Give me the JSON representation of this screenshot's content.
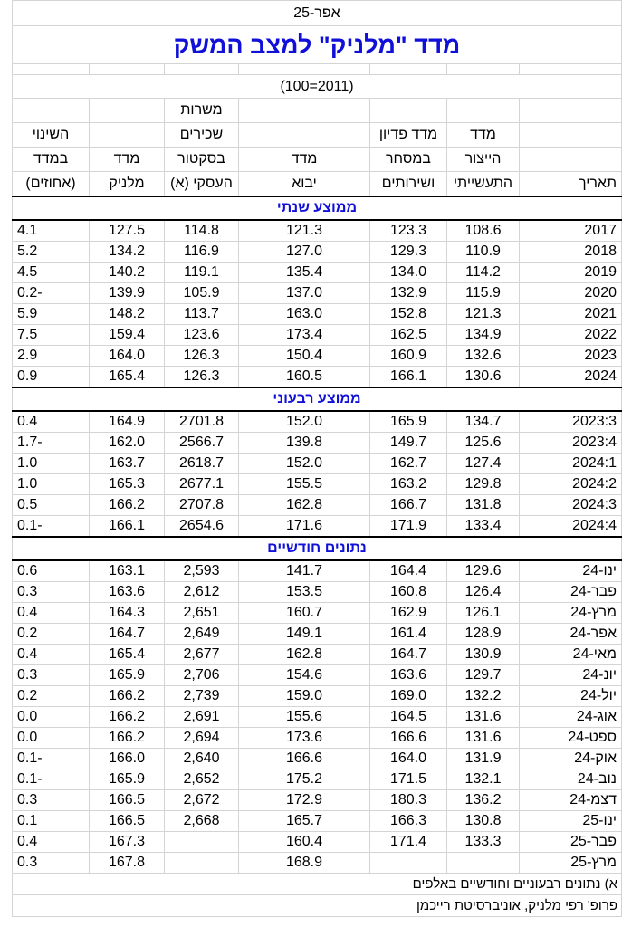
{
  "date": "אפר-25",
  "title": "מדד \"מלניק\" למצב המשק",
  "base": "(2011=100)",
  "columns": [
    [
      "תאריך"
    ],
    [
      "מדד",
      "הייצור",
      "התעשייתי"
    ],
    [
      "מדד פדיון",
      "במסחר",
      "ושירותים"
    ],
    [
      "מדד",
      "יבוא"
    ],
    [
      "משרות",
      "שכירים",
      "בסקטור",
      "העסקי (א)"
    ],
    [
      "מדד",
      "מלניק"
    ],
    [
      "השינוי",
      "במדד",
      "(אחוזים)"
    ]
  ],
  "sections": [
    {
      "title": "ממוצע שנתי",
      "rows": [
        [
          "2017",
          "108.6",
          "123.3",
          "121.3",
          "114.8",
          "127.5",
          "4.1"
        ],
        [
          "2018",
          "110.9",
          "129.3",
          "127.0",
          "116.9",
          "134.2",
          "5.2"
        ],
        [
          "2019",
          "114.2",
          "134.0",
          "135.4",
          "119.1",
          "140.2",
          "4.5"
        ],
        [
          "2020",
          "115.9",
          "132.9",
          "137.0",
          "105.9",
          "139.9",
          "-0.2"
        ],
        [
          "2021",
          "121.3",
          "152.8",
          "163.0",
          "113.7",
          "148.2",
          "5.9"
        ],
        [
          "2022",
          "134.9",
          "162.5",
          "173.4",
          "123.6",
          "159.4",
          "7.5"
        ],
        [
          "2023",
          "132.6",
          "160.9",
          "150.4",
          "126.3",
          "164.0",
          "2.9"
        ],
        [
          "2024",
          "130.6",
          "166.1",
          "160.5",
          "126.3",
          "165.4",
          "0.9"
        ]
      ]
    },
    {
      "title": "ממוצע רבעוני",
      "rows": [
        [
          "2023:3",
          "134.7",
          "165.9",
          "152.0",
          "2701.8",
          "164.9",
          "0.4"
        ],
        [
          "2023:4",
          "125.6",
          "149.7",
          "139.8",
          "2566.7",
          "162.0",
          "-1.7"
        ],
        [
          "2024:1",
          "127.4",
          "162.7",
          "152.0",
          "2618.7",
          "163.7",
          "1.0"
        ],
        [
          "2024:2",
          "129.8",
          "163.2",
          "155.5",
          "2677.1",
          "165.3",
          "1.0"
        ],
        [
          "2024:3",
          "131.8",
          "166.7",
          "162.8",
          "2707.8",
          "166.2",
          "0.5"
        ],
        [
          "2024:4",
          "133.4",
          "171.9",
          "171.6",
          "2654.6",
          "166.1",
          "-0.1"
        ]
      ]
    },
    {
      "title": "נתונים חודשיים",
      "rows": [
        [
          "ינו-24",
          "129.6",
          "164.4",
          "141.7",
          "2,593",
          "163.1",
          "0.6"
        ],
        [
          "פבר-24",
          "126.4",
          "160.8",
          "153.5",
          "2,612",
          "163.6",
          "0.3"
        ],
        [
          "מרץ-24",
          "126.1",
          "162.9",
          "160.7",
          "2,651",
          "164.3",
          "0.4"
        ],
        [
          "אפר-24",
          "128.9",
          "161.4",
          "149.1",
          "2,649",
          "164.7",
          "0.2"
        ],
        [
          "מאי-24",
          "130.9",
          "164.7",
          "162.8",
          "2,677",
          "165.4",
          "0.4"
        ],
        [
          "יונ-24",
          "129.7",
          "163.6",
          "154.6",
          "2,706",
          "165.9",
          "0.3"
        ],
        [
          "יול-24",
          "132.2",
          "169.0",
          "159.0",
          "2,739",
          "166.2",
          "0.2"
        ],
        [
          "אוג-24",
          "131.6",
          "164.5",
          "155.6",
          "2,691",
          "166.2",
          "0.0"
        ],
        [
          "ספט-24",
          "131.6",
          "166.6",
          "173.6",
          "2,694",
          "166.2",
          "0.0"
        ],
        [
          "אוק-24",
          "131.9",
          "164.0",
          "166.6",
          "2,640",
          "166.0",
          "-0.1"
        ],
        [
          "נוב-24",
          "132.1",
          "171.5",
          "175.2",
          "2,652",
          "165.9",
          "-0.1"
        ],
        [
          "דצמ-24",
          "136.2",
          "180.3",
          "172.9",
          "2,672",
          "166.5",
          "0.3"
        ],
        [
          "ינו-25",
          "130.8",
          "166.3",
          "165.7",
          "2,668",
          "166.5",
          "0.1"
        ],
        [
          "פבר-25",
          "133.3",
          "171.4",
          "160.4",
          null,
          "167.3",
          "0.4"
        ],
        [
          "מרץ-25",
          null,
          null,
          "168.9",
          null,
          "167.8",
          "0.3"
        ]
      ]
    }
  ],
  "notes": [
    "א) נתונים רבעוניים וחודשיים באלפים",
    "פרופ' רפי מלניק, אוניברסיטת רייכמן"
  ]
}
